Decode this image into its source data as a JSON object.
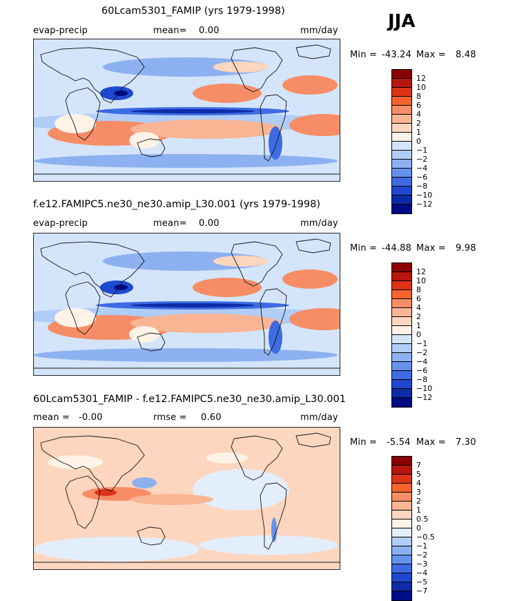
{
  "season": "JJA",
  "palettes": {
    "full": [
      "#8b0000",
      "#b8170f",
      "#dd3316",
      "#f5622e",
      "#f78d66",
      "#f9b594",
      "#fdd6bf",
      "#fff2e6",
      "#d4e5fb",
      "#b0cdf7",
      "#8db1f0",
      "#6691eb",
      "#3d6be3",
      "#1f48d0",
      "#0e2ba8",
      "#000c85"
    ],
    "diff": [
      "#8b0000",
      "#b8170f",
      "#dd3316",
      "#f5622e",
      "#f78d66",
      "#f9b594",
      "#fdd6bf",
      "#fff2e6",
      "#e3eefc",
      "#b0cdf7",
      "#8db1f0",
      "#6691eb",
      "#3d6be3",
      "#1f48d0",
      "#0e2ba8",
      "#000c85"
    ]
  },
  "panels": [
    {
      "title": "60Lcam5301_FAMIP (yrs 1979-1998)",
      "left_label": "evap-precip",
      "middle_label": "mean=",
      "middle_value": "0.00",
      "units": "mm/day",
      "min_label": "Min =",
      "min_value": "-43.24",
      "max_label": "Max =",
      "max_value": "8.48",
      "palette": "full",
      "ticks": [
        "12",
        "10",
        "8",
        "6",
        "4",
        "2",
        "1",
        "0",
        "−1",
        "−2",
        "−4",
        "−6",
        "−8",
        "−10",
        "−12"
      ],
      "field": "full"
    },
    {
      "title": "f.e12.FAMIPC5.ne30_ne30.amip_L30.001 (yrs 1979-1998)",
      "left_label": "evap-precip",
      "middle_label": "mean=",
      "middle_value": "0.00",
      "units": "mm/day",
      "min_label": "Min =",
      "min_value": "-44.88",
      "max_label": "Max =",
      "max_value": "9.98",
      "palette": "full",
      "ticks": [
        "12",
        "10",
        "8",
        "6",
        "4",
        "2",
        "1",
        "0",
        "−1",
        "−2",
        "−4",
        "−6",
        "−8",
        "−10",
        "−12"
      ],
      "field": "full"
    },
    {
      "title": "60Lcam5301_FAMIP - f.e12.FAMIPC5.ne30_ne30.amip_L30.001",
      "left_label": "mean =",
      "left_value": "-0.00",
      "middle_label": "rmse =",
      "middle_value": "0.60",
      "units": "mm/day",
      "min_label": "Min =",
      "min_value": "-5.54",
      "max_label": "Max =",
      "max_value": "7.30",
      "palette": "diff",
      "ticks": [
        "7",
        "5",
        "4",
        "3",
        "2",
        "1",
        "0.5",
        "0",
        "−0.5",
        "−1",
        "−2",
        "−3",
        "−4",
        "−5",
        "−7"
      ],
      "field": "diff"
    }
  ]
}
